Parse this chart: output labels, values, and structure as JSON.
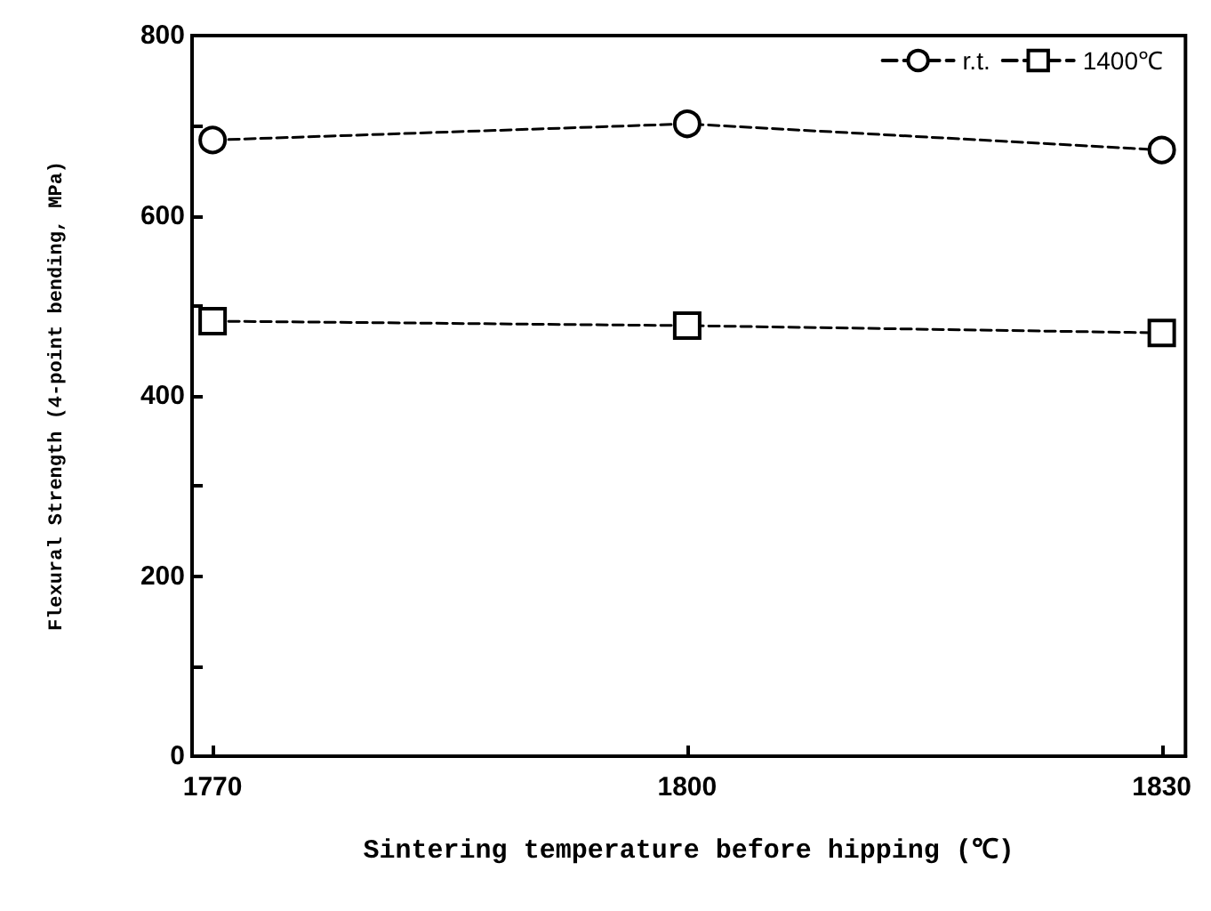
{
  "chart_data": {
    "type": "line",
    "xlabel": "Sintering temperature before hipping (℃)",
    "ylabel": "Flexural Strength (4-point bending, MPa)",
    "x": [
      1770,
      1800,
      1830
    ],
    "series": [
      {
        "name": "r.t.",
        "color": "#000000",
        "marker": "circle",
        "values": [
          684,
          702,
          673
        ]
      },
      {
        "name": "1400℃",
        "color": "#000000",
        "marker": "square",
        "values": [
          483,
          478,
          470
        ]
      }
    ],
    "xlim": [
      1768.7,
      1831.5
    ],
    "xticks": [
      1770,
      1800,
      1830
    ],
    "ylim": [
      0,
      800
    ],
    "yticks": [
      0,
      {
        "value": 100,
        "label": null
      },
      200,
      {
        "value": 300,
        "label": null
      },
      400,
      {
        "value": 500,
        "label": null
      },
      600,
      {
        "value": 700,
        "label": null
      },
      800
    ],
    "grid": false,
    "legend": "top right",
    "line_style": "dashed"
  }
}
